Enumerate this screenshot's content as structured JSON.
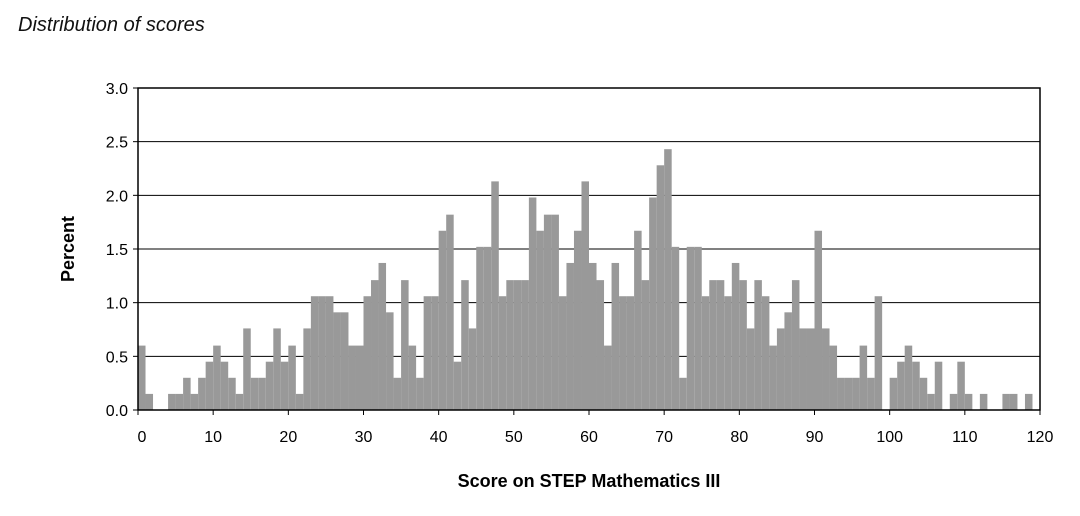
{
  "caption": "Distribution of scores",
  "chart_data": {
    "type": "bar",
    "title": "",
    "xlabel": "Score on STEP Mathematics III",
    "ylabel": "Percent",
    "xlim": [
      0,
      120
    ],
    "ylim": [
      0,
      3.0
    ],
    "x_ticks": [
      "0",
      "10",
      "20",
      "30",
      "40",
      "50",
      "60",
      "70",
      "80",
      "90",
      "100",
      "110",
      "120"
    ],
    "y_ticks": [
      "0.0",
      "0.5",
      "1.0",
      "1.5",
      "2.0",
      "2.5",
      "3.0"
    ],
    "grid": "horizontal",
    "bar_color": "#999999",
    "categories": [
      0,
      1,
      2,
      3,
      4,
      5,
      6,
      7,
      8,
      9,
      10,
      11,
      12,
      13,
      14,
      15,
      16,
      17,
      18,
      19,
      20,
      21,
      22,
      23,
      24,
      25,
      26,
      27,
      28,
      29,
      30,
      31,
      32,
      33,
      34,
      35,
      36,
      37,
      38,
      39,
      40,
      41,
      42,
      43,
      44,
      45,
      46,
      47,
      48,
      49,
      50,
      51,
      52,
      53,
      54,
      55,
      56,
      57,
      58,
      59,
      60,
      61,
      62,
      63,
      64,
      65,
      66,
      67,
      68,
      69,
      70,
      71,
      72,
      73,
      74,
      75,
      76,
      77,
      78,
      79,
      80,
      81,
      82,
      83,
      84,
      85,
      86,
      87,
      88,
      89,
      90,
      91,
      92,
      93,
      94,
      95,
      96,
      97,
      98,
      99,
      100,
      101,
      102,
      103,
      104,
      105,
      106,
      107,
      108,
      109,
      110,
      111,
      112,
      113,
      114,
      115,
      116,
      117,
      118,
      119
    ],
    "values": [
      0.6,
      0.15,
      0.0,
      0.0,
      0.15,
      0.15,
      0.3,
      0.15,
      0.3,
      0.45,
      0.6,
      0.45,
      0.3,
      0.15,
      0.76,
      0.3,
      0.3,
      0.45,
      0.76,
      0.45,
      0.6,
      0.15,
      0.76,
      1.06,
      1.06,
      1.06,
      0.91,
      0.91,
      0.6,
      0.6,
      1.06,
      1.21,
      1.37,
      0.91,
      0.3,
      1.21,
      0.6,
      0.3,
      1.06,
      1.06,
      1.67,
      1.82,
      0.45,
      1.21,
      0.76,
      1.52,
      1.52,
      2.13,
      1.06,
      1.21,
      1.21,
      1.21,
      1.98,
      1.67,
      1.82,
      1.82,
      1.06,
      1.37,
      1.67,
      2.13,
      1.37,
      1.21,
      0.6,
      1.37,
      1.06,
      1.06,
      1.67,
      1.21,
      1.98,
      2.28,
      2.43,
      1.52,
      0.3,
      1.52,
      1.52,
      1.06,
      1.21,
      1.21,
      1.06,
      1.37,
      1.21,
      0.76,
      1.21,
      1.06,
      0.6,
      0.76,
      0.91,
      1.21,
      0.76,
      0.76,
      1.67,
      0.76,
      0.6,
      0.3,
      0.3,
      0.3,
      0.6,
      0.3,
      1.06,
      0.0,
      0.3,
      0.45,
      0.6,
      0.45,
      0.3,
      0.15,
      0.45,
      0.0,
      0.15,
      0.45,
      0.15,
      0.0,
      0.15,
      0.0,
      0.0,
      0.15,
      0.15,
      0.0,
      0.15,
      0.0
    ]
  }
}
